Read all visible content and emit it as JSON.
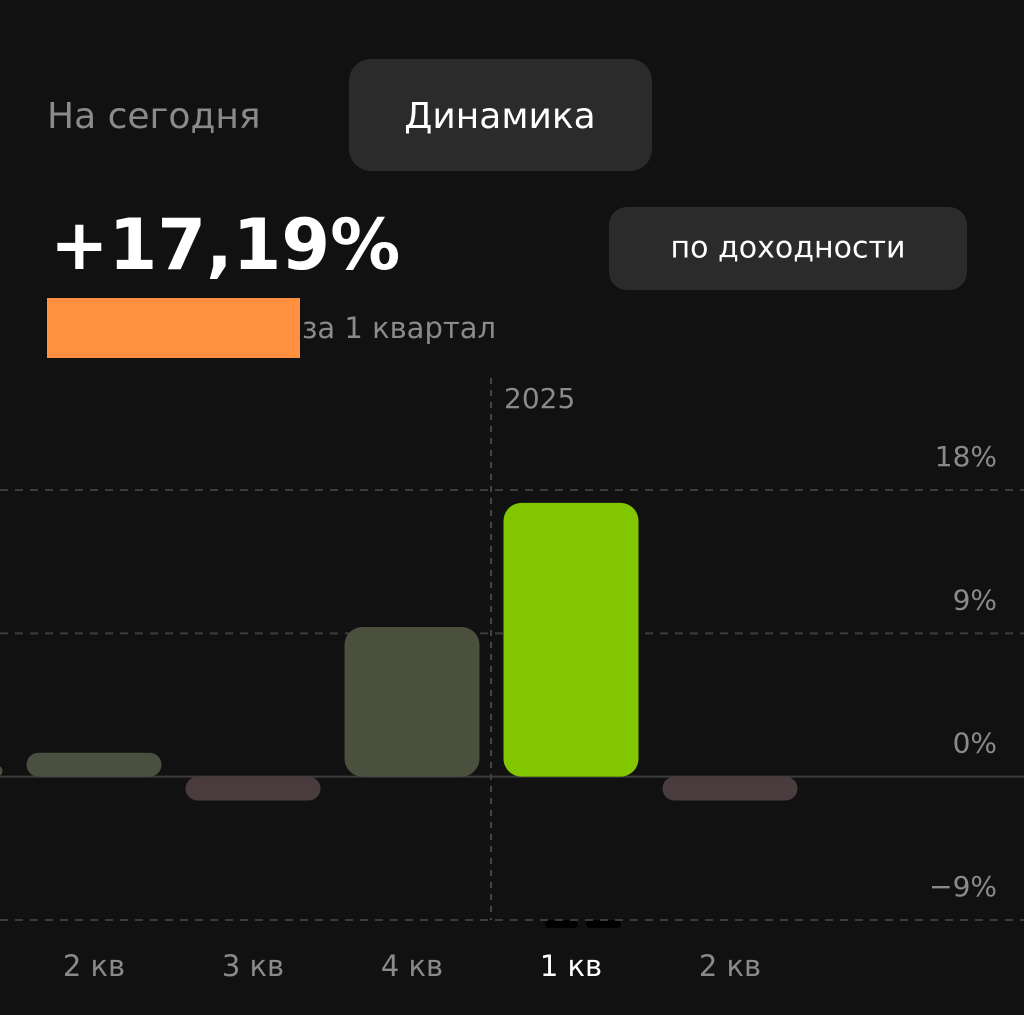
{
  "tabs": [
    "На сегодня",
    "Динамика"
  ],
  "summary": {
    "value": "+17,19%",
    "period": "за 1 квартал",
    "button": "по доходности"
  },
  "chart_data": {
    "type": "bar",
    "year_label": "2025",
    "categories": [
      null,
      "2 кв",
      "3 кв",
      "4 кв",
      "1 кв",
      "2 кв"
    ],
    "values": [
      0.7,
      1.5,
      -1.5,
      9.4,
      17.19,
      -1.5
    ],
    "colors": [
      "#4a5040",
      "#4a5040",
      "#4a3c3e",
      "#4a4f3e",
      "#82c600",
      "#4a3c3e"
    ],
    "selected_index": 4,
    "ylim": [
      -9,
      18
    ],
    "yticks": [
      {
        "value": 18,
        "label": "18%"
      },
      {
        "value": 9,
        "label": "9%"
      },
      {
        "value": 0,
        "label": "0%"
      },
      {
        "value": -9,
        "label": "−9%"
      }
    ],
    "grid": true
  }
}
